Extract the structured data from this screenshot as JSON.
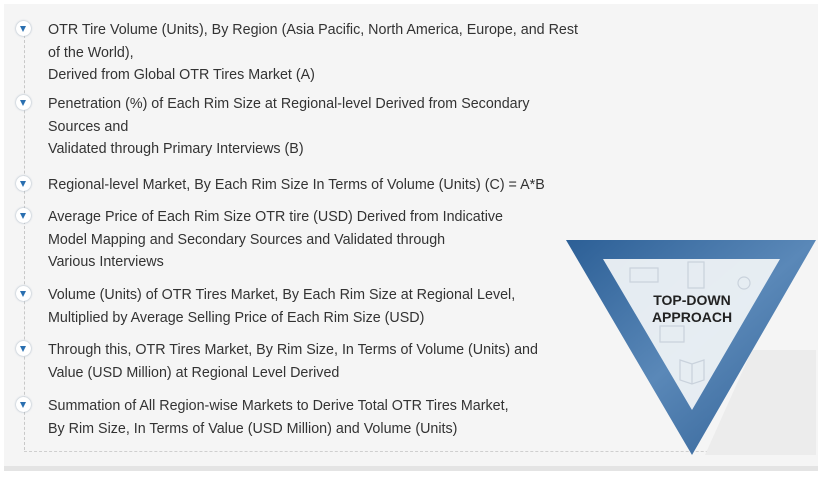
{
  "steps": [
    {
      "lines": [
        "OTR Tire Volume (Units), By Region (Asia Pacific, North America, Europe, and Rest",
        "of the World),",
        "Derived from Global OTR Tires Market (A)"
      ]
    },
    {
      "lines": [
        "Penetration (%) of Each Rim Size at Regional-level Derived from Secondary",
        "Sources and",
        "Validated through Primary Interviews (B)"
      ]
    },
    {
      "lines": [
        "Regional-level Market, By Each Rim Size In Terms of Volume (Units) (C) = A*B"
      ]
    },
    {
      "lines": [
        "Average Price of Each Rim Size OTR tire (USD) Derived from Indicative",
        "Model Mapping and Secondary Sources and Validated through",
        "Various Interviews"
      ]
    },
    {
      "lines": [
        "Volume (Units) of OTR Tires Market, By Each Rim Size at Regional Level,",
        "Multiplied by Average Selling Price of Each Rim Size (USD)"
      ]
    },
    {
      "lines": [
        "Through this, OTR Tires Market, By Rim Size, In Terms of Volume (Units) and",
        "Value (USD Million) at Regional Level Derived"
      ]
    },
    {
      "lines": [
        "Summation of All Region-wise Markets to Derive Total OTR Tires Market,",
        "By Rim Size, In Terms of Value (USD Million) and Volume (Units)"
      ]
    }
  ],
  "approach": {
    "line1": "TOP-DOWN",
    "line2": "APPROACH"
  },
  "colors": {
    "accent": "#2a6fb0",
    "triangle": "#3f6fa3",
    "background": "#f5f5f5"
  },
  "icons": [
    "handshake-icon",
    "binder-icon",
    "user-icon",
    "laptop-icon",
    "book-icon"
  ]
}
